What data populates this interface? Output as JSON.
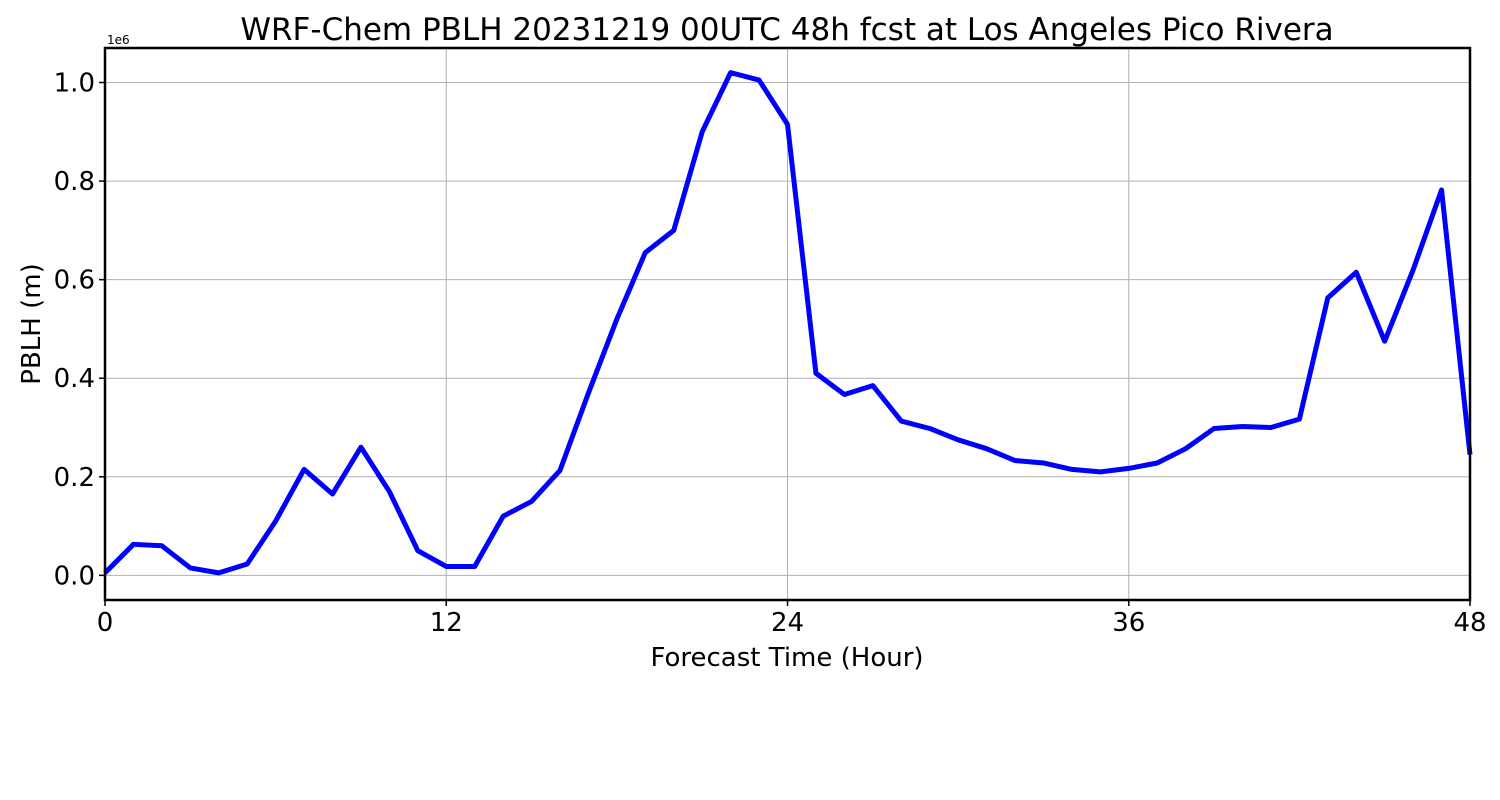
{
  "chart_data": {
    "type": "line",
    "title": "WRF-Chem PBLH  20231219 00UTC 48h fcst at Los Angeles Pico Rivera",
    "xlabel": "Forecast Time (Hour)",
    "ylabel": "PBLH  (m)",
    "y_offset_label": "1e6",
    "xlim": [
      0,
      48
    ],
    "ylim": [
      -0.05,
      1.07
    ],
    "xticks": [
      0,
      12,
      24,
      36,
      48
    ],
    "xtick_labels": [
      "0",
      "12",
      "24",
      "36",
      "48"
    ],
    "yticks": [
      0.0,
      0.2,
      0.4,
      0.6,
      0.8,
      1.0
    ],
    "ytick_labels": [
      "0.0",
      "0.2",
      "0.4",
      "0.6",
      "0.8",
      "1.0"
    ],
    "grid": true,
    "line_color": "#0000ff",
    "series": [
      {
        "x": [
          0,
          1,
          2,
          3,
          4,
          5,
          6,
          7,
          8,
          9,
          10,
          11,
          12,
          13,
          14,
          15,
          16,
          17,
          18,
          19,
          20,
          21,
          22,
          23,
          24,
          25,
          26,
          27,
          28,
          29,
          30,
          31,
          32,
          33,
          34,
          35,
          36,
          37,
          38,
          39,
          40,
          41,
          42,
          43,
          44,
          45,
          46,
          47,
          48
        ],
        "values": [
          0.005,
          0.063,
          0.06,
          0.015,
          0.005,
          0.023,
          0.11,
          0.215,
          0.165,
          0.26,
          0.17,
          0.05,
          0.018,
          0.018,
          0.12,
          0.15,
          0.213,
          0.37,
          0.52,
          0.655,
          0.7,
          0.9,
          1.02,
          1.005,
          0.915,
          0.41,
          0.367,
          0.385,
          0.313,
          0.298,
          0.275,
          0.257,
          0.233,
          0.228,
          0.215,
          0.21,
          0.217,
          0.228,
          0.257,
          0.298,
          0.302,
          0.3,
          0.317,
          0.563,
          0.615,
          0.475,
          0.62,
          0.782,
          0.245
        ]
      }
    ]
  }
}
